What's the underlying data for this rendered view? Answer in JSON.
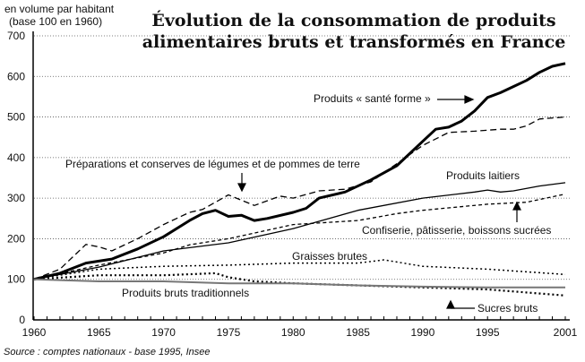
{
  "chart_data": {
    "type": "line",
    "title": "Évolution de la consommation de produits alimentaires bruts et transformés en France",
    "title_lines": [
      "Évolution de la consommation de produits",
      "alimentaires bruts et transformés en France"
    ],
    "ylabel_lines": [
      "en volume par habitant",
      "(base 100 en 1960)"
    ],
    "xlabel": "",
    "source": "Source : comptes nationaux - base 1995, Insee",
    "xlim": [
      1960,
      2001
    ],
    "ylim": [
      0,
      700
    ],
    "x_ticks": [
      "1960",
      "1965",
      "1970",
      "1975",
      "1980",
      "1985",
      "1990",
      "1995",
      "2001"
    ],
    "y_ticks": [
      "0",
      "100",
      "200",
      "300",
      "400",
      "500",
      "600",
      "700"
    ],
    "grid": "horizontal dotted",
    "legend": "inline annotations",
    "series": [
      {
        "name": "Produits « santé forme »",
        "style": "thick-solid",
        "color": "#000000",
        "points": [
          [
            1960,
            100
          ],
          [
            1962,
            115
          ],
          [
            1964,
            140
          ],
          [
            1966,
            150
          ],
          [
            1968,
            175
          ],
          [
            1970,
            205
          ],
          [
            1972,
            245
          ],
          [
            1973,
            262
          ],
          [
            1974,
            270
          ],
          [
            1975,
            255
          ],
          [
            1976,
            258
          ],
          [
            1977,
            245
          ],
          [
            1978,
            250
          ],
          [
            1980,
            265
          ],
          [
            1981,
            275
          ],
          [
            1982,
            300
          ],
          [
            1984,
            315
          ],
          [
            1986,
            345
          ],
          [
            1988,
            380
          ],
          [
            1990,
            440
          ],
          [
            1991,
            470
          ],
          [
            1992,
            475
          ],
          [
            1993,
            490
          ],
          [
            1994,
            515
          ],
          [
            1995,
            548
          ],
          [
            1996,
            560
          ],
          [
            1997,
            575
          ],
          [
            1998,
            590
          ],
          [
            1999,
            610
          ],
          [
            2000,
            625
          ],
          [
            2001,
            632
          ]
        ]
      },
      {
        "name": "Préparations et conserves de légumes  et de pommes de terre",
        "style": "long-dash",
        "color": "#000000",
        "points": [
          [
            1960,
            100
          ],
          [
            1962,
            125
          ],
          [
            1964,
            186
          ],
          [
            1965,
            180
          ],
          [
            1966,
            170
          ],
          [
            1968,
            200
          ],
          [
            1970,
            235
          ],
          [
            1972,
            265
          ],
          [
            1973,
            272
          ],
          [
            1975,
            308
          ],
          [
            1976,
            295
          ],
          [
            1977,
            282
          ],
          [
            1979,
            305
          ],
          [
            1980,
            300
          ],
          [
            1982,
            318
          ],
          [
            1984,
            322
          ],
          [
            1986,
            340
          ],
          [
            1988,
            385
          ],
          [
            1990,
            430
          ],
          [
            1992,
            462
          ],
          [
            1994,
            465
          ],
          [
            1996,
            470
          ],
          [
            1997,
            470
          ],
          [
            1998,
            478
          ],
          [
            1999,
            495
          ],
          [
            2001,
            500
          ]
        ]
      },
      {
        "name": "Produits laitiers",
        "style": "thin-solid",
        "color": "#000000",
        "points": [
          [
            1960,
            100
          ],
          [
            1965,
            130
          ],
          [
            1970,
            170
          ],
          [
            1975,
            190
          ],
          [
            1980,
            225
          ],
          [
            1985,
            270
          ],
          [
            1990,
            300
          ],
          [
            1994,
            315
          ],
          [
            1995,
            320
          ],
          [
            1996,
            315
          ],
          [
            1997,
            318
          ],
          [
            1999,
            330
          ],
          [
            2001,
            338
          ]
        ]
      },
      {
        "name": "Confiserie, pâtisserie, boissons sucrées",
        "style": "short-dash",
        "color": "#000000",
        "points": [
          [
            1960,
            100
          ],
          [
            1965,
            135
          ],
          [
            1970,
            165
          ],
          [
            1972,
            185
          ],
          [
            1975,
            200
          ],
          [
            1980,
            235
          ],
          [
            1985,
            245
          ],
          [
            1988,
            262
          ],
          [
            1990,
            270
          ],
          [
            1995,
            285
          ],
          [
            1998,
            290
          ],
          [
            2001,
            310
          ]
        ]
      },
      {
        "name": "Graisses brutes",
        "style": "dotted",
        "color": "#000000",
        "points": [
          [
            1960,
            100
          ],
          [
            1965,
            125
          ],
          [
            1970,
            132
          ],
          [
            1975,
            135
          ],
          [
            1980,
            140
          ],
          [
            1985,
            140
          ],
          [
            1987,
            148
          ],
          [
            1990,
            132
          ],
          [
            1995,
            125
          ],
          [
            2001,
            112
          ]
        ]
      },
      {
        "name": "Sucres bruts",
        "style": "heavy-dotted",
        "color": "#000000",
        "points": [
          [
            1960,
            100
          ],
          [
            1965,
            110
          ],
          [
            1970,
            110
          ],
          [
            1974,
            115
          ],
          [
            1975,
            105
          ],
          [
            1977,
            95
          ],
          [
            1980,
            90
          ],
          [
            1985,
            85
          ],
          [
            1990,
            80
          ],
          [
            1995,
            75
          ],
          [
            2001,
            60
          ]
        ]
      },
      {
        "name": "Produits bruts traditionnels",
        "style": "grey-solid",
        "color": "#777777",
        "points": [
          [
            1960,
            100
          ],
          [
            1965,
            95
          ],
          [
            1970,
            95
          ],
          [
            1975,
            90
          ],
          [
            1980,
            90
          ],
          [
            1985,
            85
          ],
          [
            1990,
            82
          ],
          [
            1995,
            80
          ],
          [
            2001,
            80
          ]
        ]
      }
    ]
  }
}
